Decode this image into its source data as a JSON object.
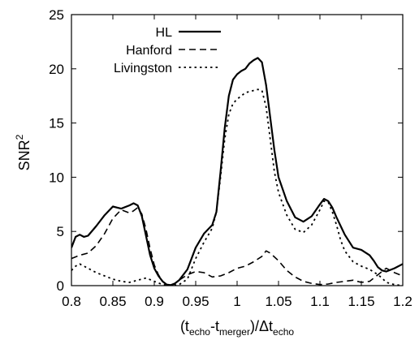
{
  "chart_data": {
    "type": "line",
    "title": "",
    "xlabel": {
      "main": "(t",
      "sub1": "echo",
      "mid1": "-t",
      "sub2": "merger",
      "mid2": ")/Δt",
      "sub3": "echo"
    },
    "ylabel": {
      "base": "SNR",
      "sup": "2"
    },
    "xlim": [
      0.8,
      1.2
    ],
    "ylim": [
      0,
      25
    ],
    "xticks": [
      "0.8",
      "0.85",
      "0.9",
      "0.95",
      "1",
      "1.05",
      "1.1",
      "1.15",
      "1.2"
    ],
    "yticks": [
      "0",
      "5",
      "10",
      "15",
      "20",
      "25"
    ],
    "grid": false,
    "legend_position": "top-left",
    "series": [
      {
        "name": "HL",
        "style": "solid",
        "x": [
          0.8,
          0.805,
          0.81,
          0.815,
          0.82,
          0.83,
          0.84,
          0.85,
          0.86,
          0.87,
          0.875,
          0.88,
          0.885,
          0.89,
          0.895,
          0.9,
          0.905,
          0.91,
          0.915,
          0.92,
          0.925,
          0.93,
          0.94,
          0.95,
          0.96,
          0.97,
          0.975,
          0.98,
          0.985,
          0.99,
          0.995,
          1.0,
          1.005,
          1.01,
          1.015,
          1.02,
          1.025,
          1.03,
          1.035,
          1.04,
          1.045,
          1.05,
          1.06,
          1.07,
          1.08,
          1.09,
          1.1,
          1.105,
          1.11,
          1.115,
          1.12,
          1.125,
          1.13,
          1.14,
          1.15,
          1.16,
          1.165,
          1.17,
          1.175,
          1.18,
          1.19,
          1.2
        ],
        "y": [
          3.5,
          4.5,
          4.7,
          4.5,
          4.6,
          5.5,
          6.5,
          7.3,
          7.1,
          7.4,
          7.6,
          7.4,
          6.4,
          4.6,
          2.8,
          1.6,
          0.9,
          0.4,
          0.1,
          0.05,
          0.2,
          0.5,
          1.5,
          3.5,
          4.8,
          5.6,
          6.8,
          10.5,
          14.5,
          17.5,
          19.0,
          19.5,
          19.8,
          20.0,
          20.5,
          20.8,
          21.0,
          20.6,
          18.5,
          15.5,
          12.5,
          10.0,
          7.8,
          6.3,
          5.9,
          6.4,
          7.5,
          8.0,
          7.8,
          7.2,
          6.3,
          5.5,
          4.7,
          3.5,
          3.3,
          2.8,
          2.3,
          1.7,
          1.4,
          1.3,
          1.6,
          2.0
        ]
      },
      {
        "name": "Hanford",
        "style": "dashed",
        "x": [
          0.8,
          0.81,
          0.82,
          0.83,
          0.84,
          0.85,
          0.86,
          0.87,
          0.875,
          0.88,
          0.885,
          0.89,
          0.895,
          0.9,
          0.905,
          0.91,
          0.915,
          0.92,
          0.925,
          0.93,
          0.94,
          0.95,
          0.96,
          0.97,
          0.98,
          0.99,
          1.0,
          1.01,
          1.02,
          1.03,
          1.035,
          1.04,
          1.05,
          1.06,
          1.07,
          1.08,
          1.09,
          1.1,
          1.11,
          1.12,
          1.13,
          1.14,
          1.15,
          1.16,
          1.17,
          1.18,
          1.19,
          1.2
        ],
        "y": [
          2.5,
          2.8,
          3.0,
          3.7,
          4.8,
          6.2,
          7.0,
          6.7,
          6.9,
          7.2,
          6.6,
          5.2,
          3.4,
          1.9,
          1.0,
          0.4,
          0.1,
          0.0,
          0.2,
          0.5,
          1.0,
          1.3,
          1.2,
          0.8,
          0.9,
          1.2,
          1.6,
          1.8,
          2.2,
          2.7,
          3.2,
          3.0,
          2.3,
          1.4,
          0.8,
          0.4,
          0.2,
          0.1,
          0.15,
          0.3,
          0.4,
          0.5,
          0.3,
          0.4,
          1.0,
          1.6,
          1.2,
          0.9
        ]
      },
      {
        "name": "Livingston",
        "style": "dotted",
        "x": [
          0.8,
          0.805,
          0.81,
          0.82,
          0.83,
          0.84,
          0.85,
          0.86,
          0.87,
          0.88,
          0.89,
          0.9,
          0.91,
          0.92,
          0.93,
          0.94,
          0.95,
          0.96,
          0.97,
          0.975,
          0.98,
          0.985,
          0.99,
          0.995,
          1.0,
          1.005,
          1.01,
          1.015,
          1.02,
          1.025,
          1.03,
          1.035,
          1.04,
          1.045,
          1.05,
          1.06,
          1.07,
          1.08,
          1.09,
          1.1,
          1.105,
          1.11,
          1.115,
          1.12,
          1.125,
          1.13,
          1.14,
          1.15,
          1.16,
          1.17,
          1.175,
          1.18,
          1.19,
          1.2
        ],
        "y": [
          1.4,
          1.8,
          2.0,
          1.6,
          1.2,
          0.9,
          0.6,
          0.4,
          0.3,
          0.5,
          0.7,
          0.4,
          0.1,
          0.0,
          0.1,
          0.6,
          2.5,
          4.0,
          5.3,
          6.8,
          10.0,
          13.5,
          15.8,
          16.8,
          17.2,
          17.5,
          17.8,
          17.9,
          18.0,
          18.1,
          18.0,
          16.5,
          13.5,
          10.5,
          8.6,
          6.5,
          5.2,
          4.9,
          5.6,
          7.0,
          7.8,
          7.7,
          6.8,
          5.6,
          4.2,
          3.2,
          2.2,
          1.8,
          1.5,
          1.0,
          0.7,
          0.3,
          0.1,
          0.0
        ]
      }
    ]
  }
}
